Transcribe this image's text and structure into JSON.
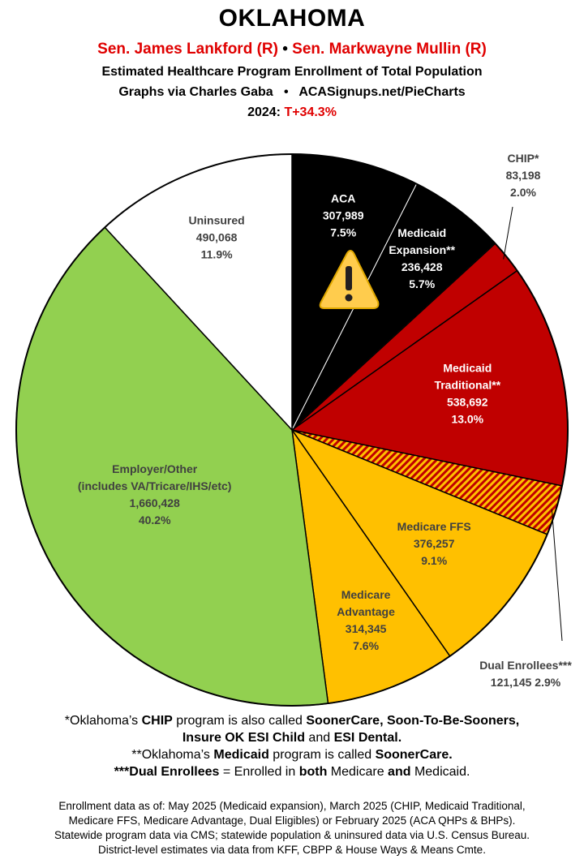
{
  "header": {
    "title": "OKLAHOMA",
    "senator1": "Sen. James Lankford (R)",
    "separator": "•",
    "senator2": "Sen. Markwayne Mullin (R)",
    "subtitle": "Estimated Healthcare Program Enrollment of Total Population",
    "credit": "Graphs via Charles Gaba   •   ACASignups.net/PieCharts",
    "margin_label": "2024:",
    "margin_value": "T+34.3%"
  },
  "chart_data": {
    "type": "pie",
    "start_angle_deg": 0,
    "direction": "clockwise",
    "slices": [
      {
        "label": "ACA",
        "value": 307989,
        "value_text": "307,989",
        "percent_text": "7.5%",
        "color": "#000000",
        "text_color": "#ffffff",
        "warning_icon": true
      },
      {
        "label": "Medicaid Expansion**",
        "value": 236428,
        "value_text": "236,428",
        "percent_text": "5.7%",
        "color": "#000000",
        "text_color": "#ffffff"
      },
      {
        "label": "CHIP*",
        "value": 83198,
        "value_text": "83,198",
        "percent_text": "2.0%",
        "color": "#c00000",
        "text_color": "#404040",
        "callout": true
      },
      {
        "label": "Medicaid Traditional**",
        "value": 538692,
        "value_text": "538,692",
        "percent_text": "13.0%",
        "color": "#c00000",
        "text_color": "#ffffff"
      },
      {
        "label": "Dual Enrollees***",
        "value": 121145,
        "value_text": "121,145",
        "percent_text": "2.9%",
        "color": "#c00000",
        "pattern": "hatched-red-orange",
        "text_color": "#404040",
        "callout": true
      },
      {
        "label": "Medicare FFS",
        "value": 376257,
        "value_text": "376,257",
        "percent_text": "9.1%",
        "color": "#ffc000",
        "text_color": "#404040"
      },
      {
        "label": "Medicare Advantage",
        "value": 314345,
        "value_text": "314,345",
        "percent_text": "7.6%",
        "color": "#ffc000",
        "text_color": "#404040"
      },
      {
        "label": "Employer/Other (includes VA/Tricare/IHS/etc)",
        "value": 1660428,
        "value_text": "1,660,428",
        "percent_text": "40.2%",
        "color": "#92d050",
        "text_color": "#404040"
      },
      {
        "label": "Uninsured",
        "value": 490068,
        "value_text": "490,068",
        "percent_text": "11.9%",
        "color": "#ffffff",
        "text_color": "#404040"
      }
    ]
  },
  "notes": {
    "line1_a": "*Oklahoma’s ",
    "line1_b": "CHIP",
    "line1_c": " program is also called ",
    "line1_d": "SoonerCare, Soon-To-Be-Sooners,",
    "line2_a": "Insure OK ESI Child",
    "line2_b": " and ",
    "line2_c": "ESI Dental.",
    "line3_a": "**Oklahoma’s ",
    "line3_b": "Medicaid",
    "line3_c": " program is called ",
    "line3_d": "SoonerCare.",
    "line4_a": "***Dual Enrollees",
    "line4_b": " = Enrolled in ",
    "line4_c": "both",
    "line4_d": " Medicare ",
    "line4_e": "and",
    "line4_f": " Medicaid."
  },
  "sources": {
    "line1": "Enrollment data as of: May 2025 (Medicaid expansion), March 2025 (CHIP, Medicaid Traditional,",
    "line2": "Medicare FFS, Medicare Advantage, Dual Eligibles) or February 2025 (ACA QHPs & BHPs).",
    "line3": "Statewide program data via CMS; statewide population & uninsured data via U.S. Census Bureau.",
    "line4": "District-level estimates via data from KFF, CBPP & House Ways & Means Cmte."
  }
}
